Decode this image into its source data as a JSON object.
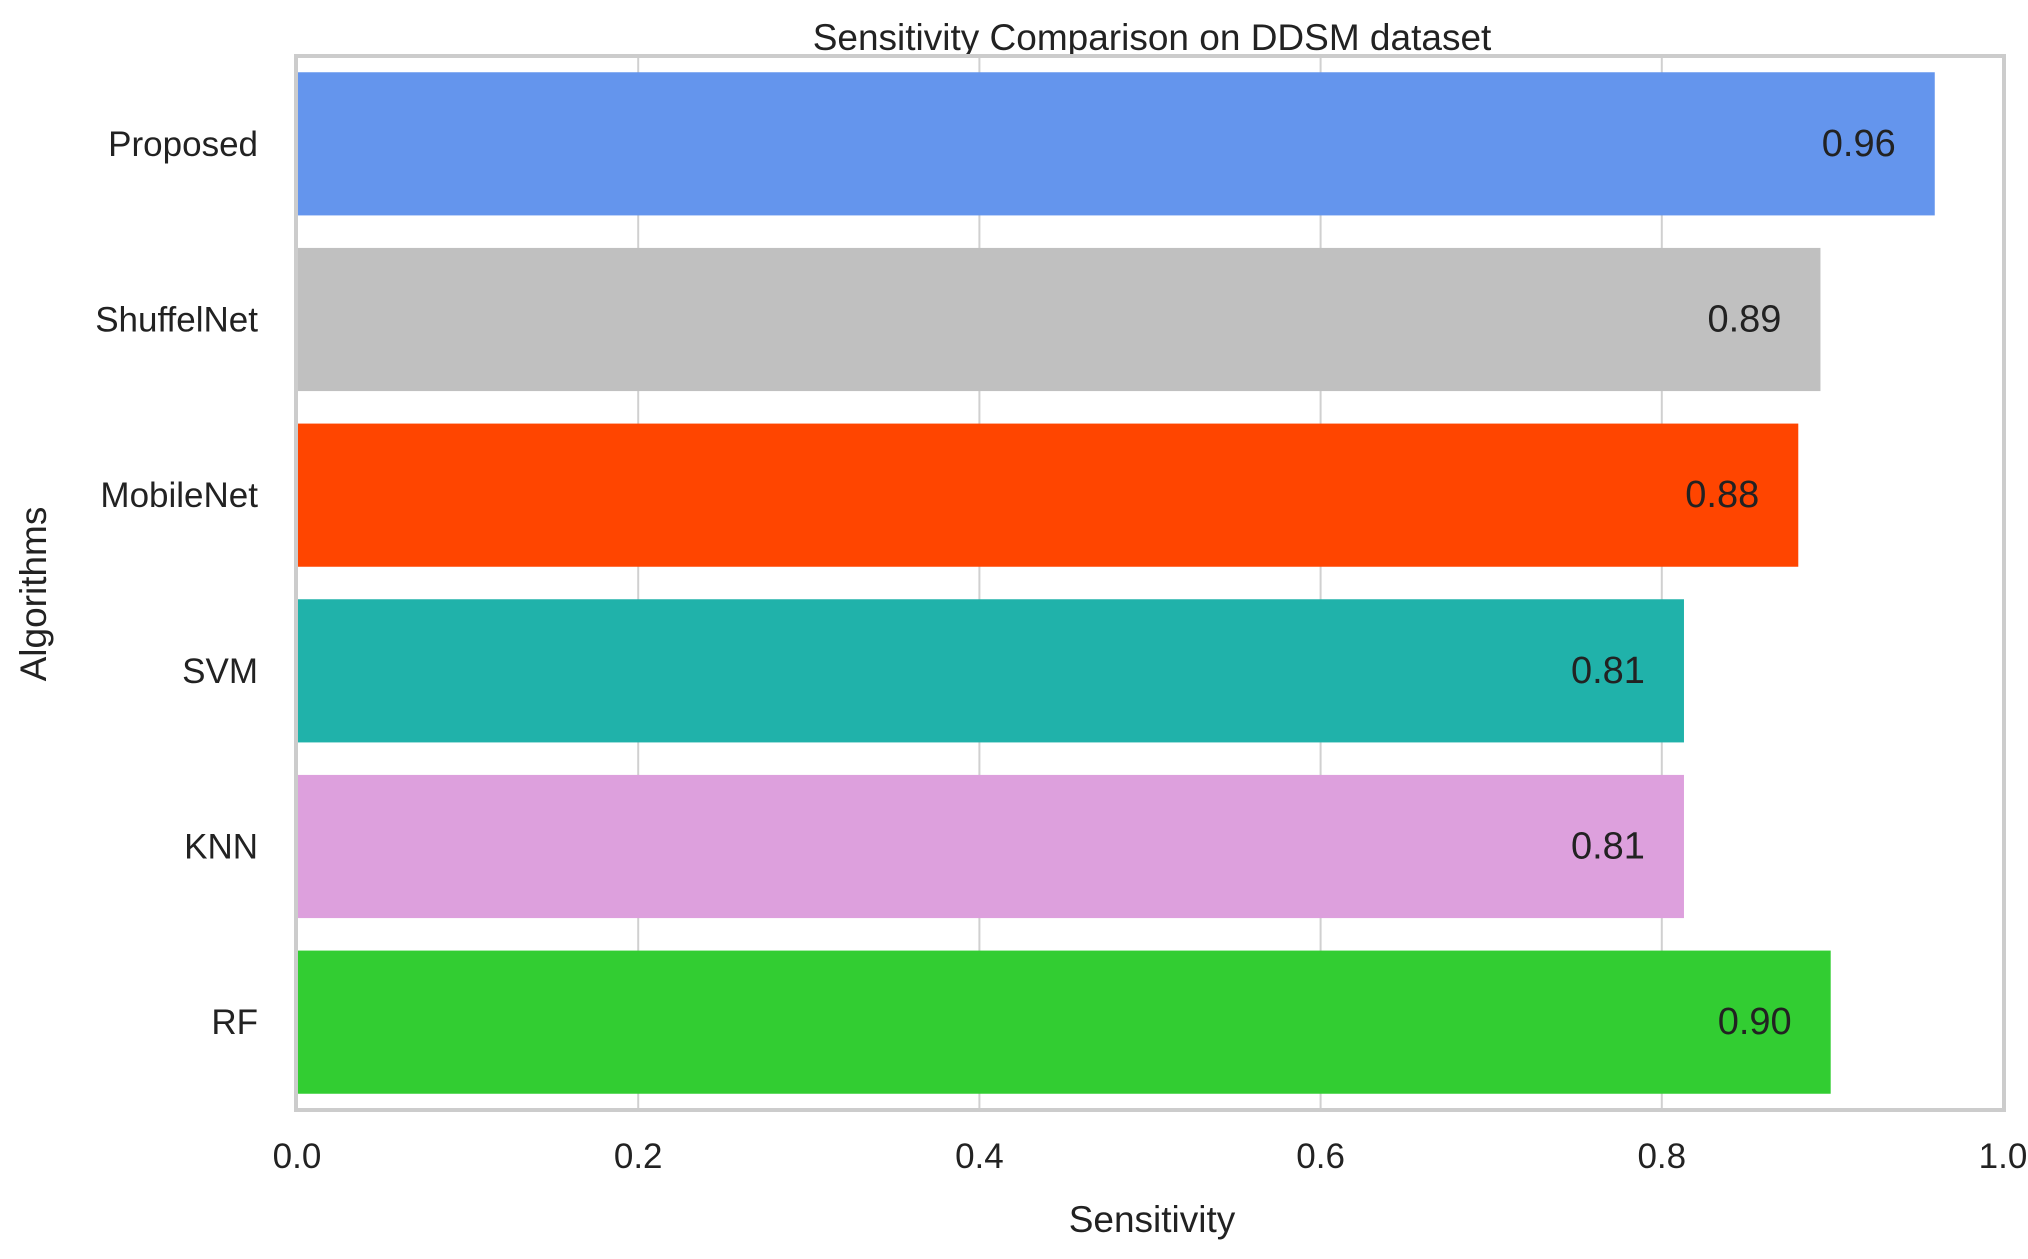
{
  "chart_data": {
    "type": "bar",
    "orientation": "horizontal",
    "title": "Sensitivity Comparison on DDSM dataset",
    "xlabel": "Sensitivity",
    "ylabel": "Algorithms",
    "xlim": [
      0.0,
      1.0
    ],
    "xticks": [
      "0.0",
      "0.2",
      "0.4",
      "0.6",
      "0.8",
      "1.0"
    ],
    "grid": true,
    "categories": [
      "Proposed",
      "ShuffelNet",
      "MobileNet",
      "SVM",
      "KNN",
      "RF"
    ],
    "values": [
      0.96,
      0.893,
      0.88,
      0.813,
      0.813,
      0.899
    ],
    "value_labels": [
      "0.96",
      "0.89",
      "0.88",
      "0.81",
      "0.81",
      "0.90"
    ],
    "colors": [
      "#6495ED",
      "#C0C0C0",
      "#FF4500",
      "#20B2AA",
      "#DDA0DD",
      "#32CD32"
    ]
  }
}
